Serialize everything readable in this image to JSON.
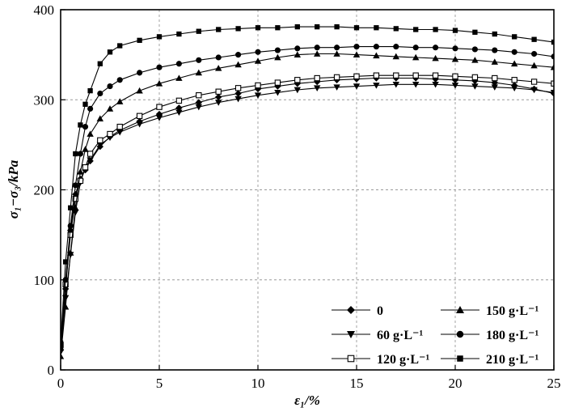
{
  "chart_data": {
    "type": "line",
    "title": "",
    "xlabel": "ε₁/%",
    "ylabel": "σ₁−σ₃/kPa",
    "xlim": [
      0,
      25
    ],
    "ylim": [
      0,
      400
    ],
    "xticks": [
      0,
      5,
      10,
      15,
      20,
      25
    ],
    "yticks": [
      0,
      100,
      200,
      300,
      400
    ],
    "xtick_labels": [
      "0",
      "5",
      "10",
      "15",
      "20",
      "25"
    ],
    "ytick_labels": [
      "0",
      "100",
      "200",
      "300",
      "400"
    ],
    "grid": true,
    "legend_position": "bottom-right",
    "series": [
      {
        "name": "0",
        "marker": "diamond",
        "x": [
          0,
          0.25,
          0.5,
          0.75,
          1.0,
          1.25,
          1.5,
          2,
          2.5,
          3,
          4,
          5,
          6,
          7,
          8,
          9,
          10,
          11,
          12,
          13,
          14,
          15,
          16,
          17,
          18,
          19,
          20,
          21,
          22,
          23,
          24,
          25
        ],
        "y": [
          22,
          90,
          155,
          195,
          212,
          222,
          232,
          248,
          259,
          266,
          276,
          284,
          291,
          297,
          303,
          307,
          312,
          315,
          318,
          320,
          322,
          323,
          324,
          324,
          324,
          323,
          322,
          321,
          319,
          316,
          312,
          307
        ]
      },
      {
        "name": "60 g·L⁻¹",
        "marker": "triangle-down",
        "x": [
          0,
          0.25,
          0.5,
          0.75,
          1.0,
          1.25,
          1.5,
          2,
          2.5,
          3,
          4,
          5,
          6,
          7,
          8,
          9,
          10,
          11,
          12,
          13,
          14,
          15,
          16,
          17,
          18,
          19,
          20,
          21,
          22,
          23,
          24,
          25
        ],
        "y": [
          20,
          80,
          128,
          175,
          208,
          225,
          233,
          250,
          258,
          264,
          273,
          280,
          286,
          292,
          297,
          301,
          305,
          308,
          311,
          313,
          314,
          315,
          316,
          317,
          317,
          317,
          316,
          315,
          314,
          313,
          311,
          308
        ]
      },
      {
        "name": "120 g·L⁻¹",
        "marker": "square-open",
        "x": [
          0,
          0.25,
          0.5,
          0.75,
          1.0,
          1.25,
          1.5,
          2,
          2.5,
          3,
          4,
          5,
          6,
          7,
          8,
          9,
          10,
          11,
          12,
          13,
          14,
          15,
          16,
          17,
          18,
          19,
          20,
          21,
          22,
          23,
          24,
          25
        ],
        "y": [
          28,
          95,
          150,
          190,
          210,
          225,
          240,
          255,
          262,
          270,
          282,
          292,
          299,
          305,
          309,
          313,
          316,
          319,
          322,
          324,
          325,
          326,
          327,
          327,
          327,
          327,
          326,
          325,
          324,
          322,
          320,
          318
        ]
      },
      {
        "name": "150 g·L⁻¹",
        "marker": "triangle-up",
        "x": [
          0,
          0.25,
          0.5,
          0.75,
          1.0,
          1.25,
          1.5,
          2,
          2.5,
          3,
          4,
          5,
          6,
          7,
          8,
          9,
          10,
          11,
          12,
          13,
          14,
          15,
          16,
          17,
          18,
          19,
          20,
          21,
          22,
          23,
          24,
          25
        ],
        "y": [
          15,
          70,
          130,
          180,
          220,
          245,
          262,
          279,
          290,
          298,
          310,
          318,
          324,
          330,
          335,
          339,
          343,
          347,
          350,
          351,
          351,
          350,
          349,
          348,
          347,
          346,
          345,
          344,
          342,
          340,
          338,
          336
        ]
      },
      {
        "name": "180 g·L⁻¹",
        "marker": "circle",
        "x": [
          0,
          0.25,
          0.5,
          0.75,
          1.0,
          1.25,
          1.5,
          2,
          2.5,
          3,
          4,
          5,
          6,
          7,
          8,
          9,
          10,
          11,
          12,
          13,
          14,
          15,
          16,
          17,
          18,
          19,
          20,
          21,
          22,
          23,
          24,
          25
        ],
        "y": [
          25,
          100,
          160,
          205,
          240,
          270,
          290,
          307,
          315,
          322,
          330,
          336,
          340,
          344,
          347,
          350,
          353,
          355,
          357,
          358,
          358,
          359,
          359,
          359,
          358,
          358,
          357,
          356,
          355,
          353,
          351,
          348
        ]
      },
      {
        "name": "210 g·L⁻¹",
        "marker": "square",
        "x": [
          0,
          0.25,
          0.5,
          0.75,
          1.0,
          1.25,
          1.5,
          2,
          2.5,
          3,
          4,
          5,
          6,
          7,
          8,
          9,
          10,
          11,
          12,
          13,
          14,
          15,
          16,
          17,
          18,
          19,
          20,
          21,
          22,
          23,
          24,
          25
        ],
        "y": [
          30,
          120,
          180,
          240,
          272,
          295,
          310,
          340,
          353,
          360,
          366,
          370,
          373,
          376,
          378,
          379,
          380,
          380,
          381,
          381,
          381,
          380,
          380,
          379,
          378,
          378,
          377,
          375,
          373,
          370,
          367,
          364
        ]
      }
    ]
  }
}
